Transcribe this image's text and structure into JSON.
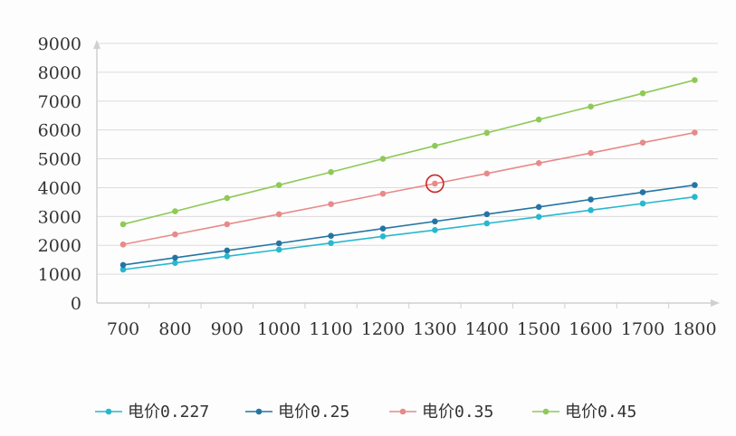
{
  "chart_data": {
    "type": "line",
    "title": "",
    "xlabel": "",
    "ylabel": "",
    "x": [
      700,
      800,
      900,
      1000,
      1100,
      1200,
      1300,
      1400,
      1500,
      1600,
      1700,
      1800
    ],
    "x_tick_labels": [
      "700",
      "800",
      "900",
      "1000",
      "1100",
      "1200",
      "1300",
      "1400",
      "1500",
      "1600",
      "1700",
      "1800"
    ],
    "ylim": [
      0,
      9000
    ],
    "y_ticks": [
      0,
      1000,
      2000,
      3000,
      4000,
      5000,
      6000,
      7000,
      8000,
      9000
    ],
    "y_tick_labels": [
      "0",
      "1000",
      "2000",
      "3000",
      "4000",
      "5000",
      "6000",
      "7000",
      "8000",
      "9000"
    ],
    "grid": "horizontal",
    "legend_position": "bottom",
    "series": [
      {
        "name": "电价0.227",
        "color": "#26b8cf",
        "values": [
          1160,
          1390,
          1620,
          1850,
          2080,
          2310,
          2530,
          2760,
          2990,
          3220,
          3450,
          3680
        ]
      },
      {
        "name": "电价0.25",
        "color": "#2475a3",
        "values": [
          1320,
          1570,
          1820,
          2070,
          2330,
          2580,
          2830,
          3080,
          3330,
          3590,
          3840,
          4090
        ]
      },
      {
        "name": "电价0.35",
        "color": "#e88a8a",
        "values": [
          2030,
          2380,
          2730,
          3080,
          3430,
          3790,
          4140,
          4490,
          4850,
          5200,
          5560,
          5910
        ]
      },
      {
        "name": "电价0.45",
        "color": "#8fc957",
        "values": [
          2730,
          3180,
          3640,
          4090,
          4540,
          5000,
          5450,
          5900,
          6360,
          6810,
          7270,
          7730
        ]
      }
    ],
    "annotation": {
      "type": "circle",
      "color": "#cc2222",
      "series_index": 2,
      "x": 1300,
      "y": 4140
    }
  }
}
